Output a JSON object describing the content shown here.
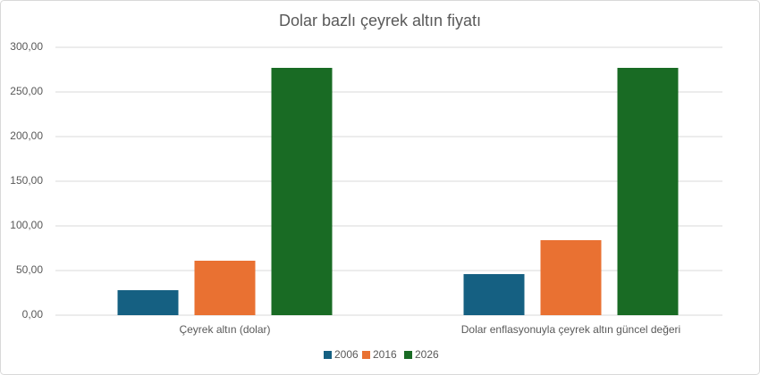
{
  "chart_data": {
    "type": "bar",
    "title": "Dolar bazlı çeyrek altın fiyatı",
    "categories": [
      "Çeyrek altın (dolar)",
      "Dolar enflasyonuyla çeyrek altın güncel değeri"
    ],
    "series": [
      {
        "name": "2006",
        "color": "#156082",
        "values": [
          28,
          46
        ]
      },
      {
        "name": "2016",
        "color": "#e97132",
        "values": [
          61,
          84
        ]
      },
      {
        "name": "2026",
        "color": "#196b24",
        "values": [
          277,
          277
        ]
      }
    ],
    "ylim": [
      0,
      300
    ],
    "yticks": [
      {
        "value": 0,
        "label": "0,00"
      },
      {
        "value": 50,
        "label": "50,00"
      },
      {
        "value": 100,
        "label": "100,00"
      },
      {
        "value": 150,
        "label": "150,00"
      },
      {
        "value": 200,
        "label": "200,00"
      },
      {
        "value": 250,
        "label": "250,00"
      },
      {
        "value": 300,
        "label": "300,00"
      }
    ],
    "grid": true,
    "legend": "bottom"
  }
}
